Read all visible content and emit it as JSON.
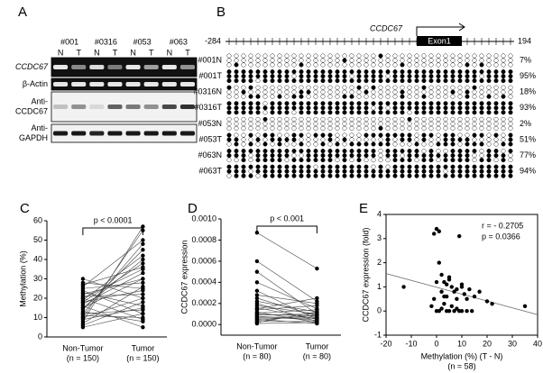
{
  "panel_labels": [
    "A",
    "B",
    "C",
    "D",
    "E"
  ],
  "gel": {
    "samples": [
      "#001",
      "#0316",
      "#053",
      "#063"
    ],
    "lanes": [
      "N",
      "T",
      "N",
      "T",
      "N",
      "T",
      "N",
      "T"
    ],
    "rows": [
      {
        "label_lines": [
          "CCDC67"
        ]
      },
      {
        "label_lines": [
          "β-Actin"
        ]
      },
      {
        "label_lines": [
          "Anti-",
          "CCDC67"
        ]
      },
      {
        "label_lines": [
          "Anti-",
          "GAPDH"
        ]
      }
    ]
  },
  "methylation": {
    "gene": "CCDC67",
    "exon": "Exon1",
    "start": "-284",
    "end": "194",
    "samples": [
      {
        "name": "#001N",
        "percent_label": "7%",
        "percent": 7
      },
      {
        "name": "#001T",
        "percent_label": "95%",
        "percent": 95
      },
      {
        "name": "#0316N",
        "percent_label": "18%",
        "percent": 18
      },
      {
        "name": "#0316T",
        "percent_label": "93%",
        "percent": 93
      },
      {
        "name": "#053N",
        "percent_label": "2%",
        "percent": 2
      },
      {
        "name": "#053T",
        "percent_label": "51%",
        "percent": 51
      },
      {
        "name": "#063N",
        "percent_label": "77%",
        "percent": 77
      },
      {
        "name": "#063T",
        "percent_label": "94%",
        "percent": 94
      }
    ]
  },
  "chart_data": [
    {
      "type": "paired",
      "ylabel": "Methylation (%)",
      "annotation": "p < 0.0001",
      "categories": [
        [
          "Non-Tumor",
          "(n = 150)"
        ],
        [
          "Tumor",
          "(n = 150)"
        ]
      ],
      "ylim": [
        0,
        60
      ],
      "yticks": [
        0,
        10,
        20,
        30,
        40,
        50,
        60
      ],
      "values": [
        [
          5,
          12
        ],
        [
          8,
          57
        ],
        [
          10,
          55
        ],
        [
          12,
          48
        ],
        [
          14,
          45
        ],
        [
          15,
          40
        ],
        [
          18,
          38
        ],
        [
          20,
          35
        ],
        [
          22,
          30
        ],
        [
          25,
          28
        ],
        [
          28,
          25
        ],
        [
          30,
          20
        ],
        [
          6,
          18
        ],
        [
          9,
          15
        ],
        [
          11,
          10
        ],
        [
          13,
          8
        ],
        [
          16,
          5
        ],
        [
          17,
          33
        ],
        [
          19,
          42
        ],
        [
          21,
          22
        ],
        [
          23,
          16
        ],
        [
          24,
          12
        ],
        [
          26,
          50
        ],
        [
          7,
          26
        ],
        [
          10,
          20
        ],
        [
          12,
          14
        ],
        [
          15,
          30
        ],
        [
          18,
          24
        ],
        [
          20,
          9
        ],
        [
          27,
          36
        ]
      ]
    },
    {
      "type": "paired",
      "ylabel": "CCDC67 expression",
      "annotation": "p < 0.001",
      "categories": [
        [
          "Non-Tumor",
          "(n = 80)"
        ],
        [
          "Tumor",
          "(n = 80)"
        ]
      ],
      "ylim": [
        -0.0001,
        0.001
      ],
      "yticks": [
        {
          "value": 0,
          "label": "0.0000"
        },
        {
          "value": 0.0002,
          "label": "0.0002"
        },
        {
          "value": 0.0004,
          "label": "0.0004"
        },
        {
          "value": 0.0006,
          "label": "0.0006"
        },
        {
          "value": 0.0008,
          "label": "0.0008"
        },
        {
          "value": 0.001,
          "label": "0.0010"
        }
      ],
      "values": [
        [
          0.00087,
          0.00053
        ],
        [
          0.0006,
          0.00022
        ],
        [
          0.0005,
          0.0001
        ],
        [
          0.0004,
          0.00015
        ],
        [
          0.00032,
          5e-05
        ],
        [
          0.00028,
          0.0002
        ],
        [
          0.00025,
          8e-05
        ],
        [
          0.00022,
          0.00012
        ],
        [
          0.0002,
          3e-05
        ],
        [
          0.00018,
          0.0001
        ],
        [
          0.00016,
          5e-05
        ],
        [
          0.00014,
          0.00018
        ],
        [
          0.00012,
          2e-05
        ],
        [
          0.0001,
          8e-05
        ],
        [
          9e-05,
          0.0001
        ],
        [
          8e-05,
          4e-05
        ],
        [
          6e-05,
          6e-05
        ],
        [
          5e-05,
          1e-05
        ],
        [
          4e-05,
          9e-05
        ],
        [
          3e-05,
          3e-05
        ],
        [
          2e-05,
          0.00012
        ],
        [
          1e-05,
          2e-05
        ],
        [
          0.00015,
          0.00025
        ],
        [
          0.00011,
          0.00014
        ],
        [
          7e-05,
          7e-05
        ]
      ]
    },
    {
      "type": "scatter",
      "xlabel": "Methylation (%) (T - N)",
      "xlabel_note": "(n = 58)",
      "ylabel": "CCDC67 expression (fold)",
      "annotations": [
        "r = - 0.2705",
        "p = 0.0366"
      ],
      "xlim": [
        -20,
        40
      ],
      "xticks": [
        -20,
        -10,
        0,
        10,
        20,
        30,
        40
      ],
      "ylim": [
        -1,
        4
      ],
      "yticks": [
        -1,
        0,
        1,
        2,
        3,
        4
      ],
      "trendline": {
        "x": [
          -20,
          40
        ],
        "y": [
          1.55,
          -0.15
        ]
      },
      "x": [
        -13,
        -2,
        -1,
        0,
        1,
        2,
        3,
        4,
        5,
        6,
        7,
        8,
        9,
        10,
        11,
        12,
        13,
        15,
        17,
        20,
        22,
        35,
        -1,
        0,
        1,
        2,
        3,
        4,
        5,
        6,
        7,
        8,
        9,
        10,
        1,
        2,
        3,
        5,
        0,
        12,
        14,
        8,
        10,
        4
      ],
      "y": [
        1.0,
        0.2,
        3.2,
        3.4,
        3.3,
        1.5,
        1.2,
        1.1,
        1.4,
        1.0,
        0.8,
        0.9,
        3.1,
        1.0,
        0.7,
        0.5,
        0.9,
        0.6,
        0.8,
        0.4,
        0.3,
        0.2,
        0.5,
        0.0,
        0.0,
        0.1,
        0.3,
        0.0,
        0.0,
        0.2,
        0.0,
        0.1,
        0.0,
        0.0,
        2.0,
        0.8,
        0.6,
        1.3,
        1.2,
        0.0,
        0.0,
        0.5,
        1.1,
        0.6
      ]
    }
  ]
}
